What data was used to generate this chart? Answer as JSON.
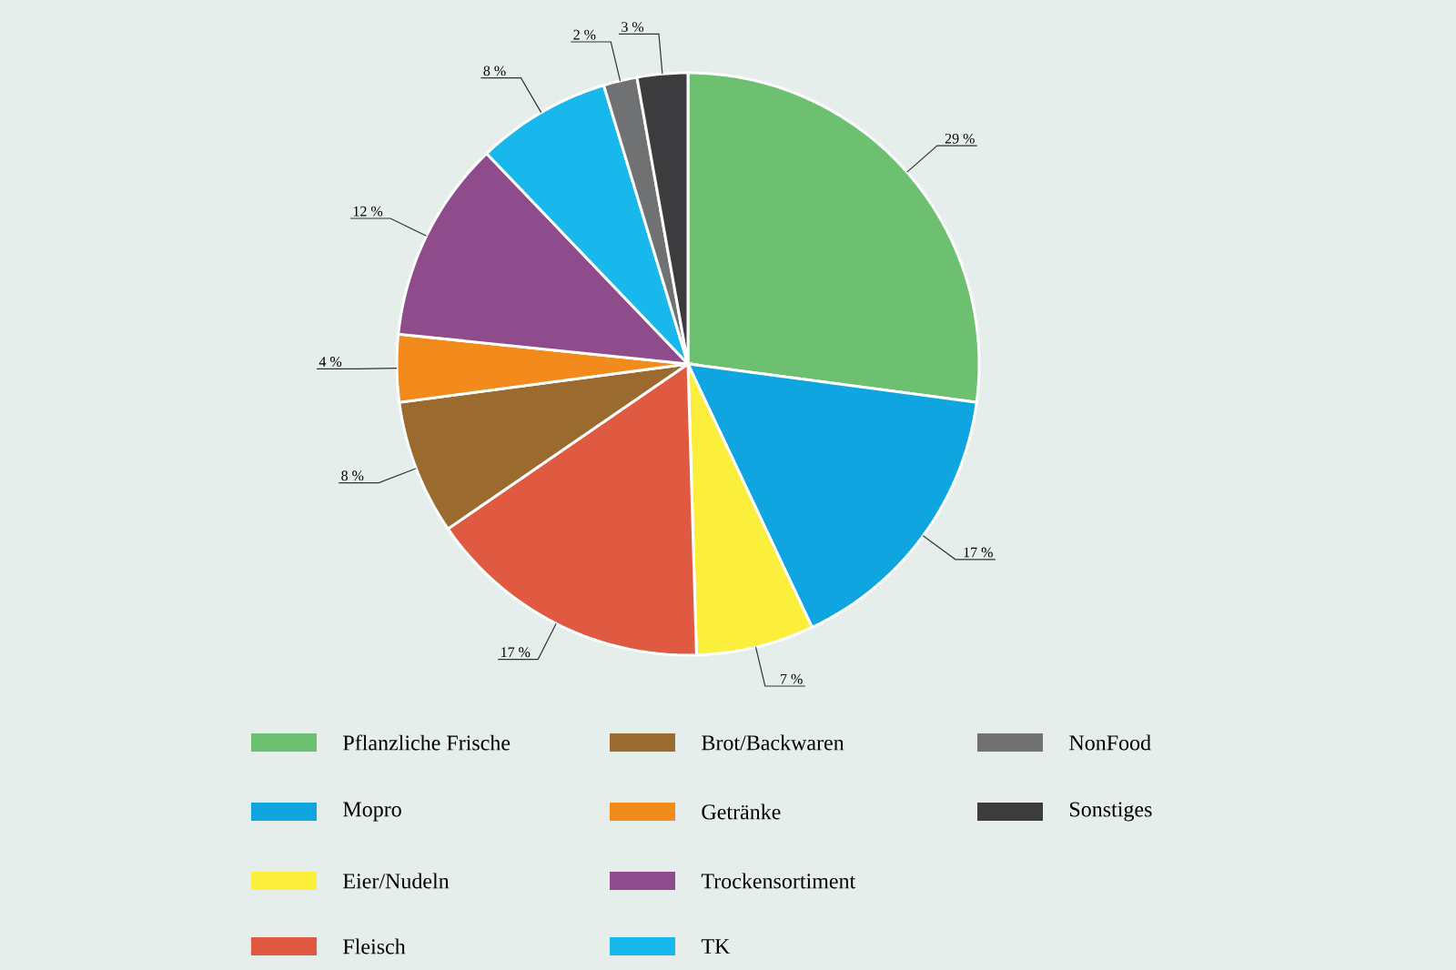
{
  "chart_data": {
    "type": "pie",
    "categories": [
      "Pflanzliche Frische",
      "Mopro",
      "Eier/Nudeln",
      "Fleisch",
      "Brot/Backwaren",
      "Getränke",
      "Trockensortiment",
      "TK",
      "NonFood",
      "Sonstiges"
    ],
    "values": [
      29,
      17,
      7,
      17,
      8,
      4,
      12,
      8,
      2,
      3
    ],
    "value_labels": [
      "29 %",
      "17 %",
      "7 %",
      "17 %",
      "8 %",
      "4 %",
      "12 %",
      "8 %",
      "2 %",
      "3 %"
    ],
    "colors": [
      "#6cc070",
      "#0ea5e0",
      "#fcef3c",
      "#e05a42",
      "#9b6a2f",
      "#f38a1c",
      "#8f4c8c",
      "#19b8ec",
      "#6f7173",
      "#3c3b3d"
    ],
    "legend": "bottom"
  }
}
